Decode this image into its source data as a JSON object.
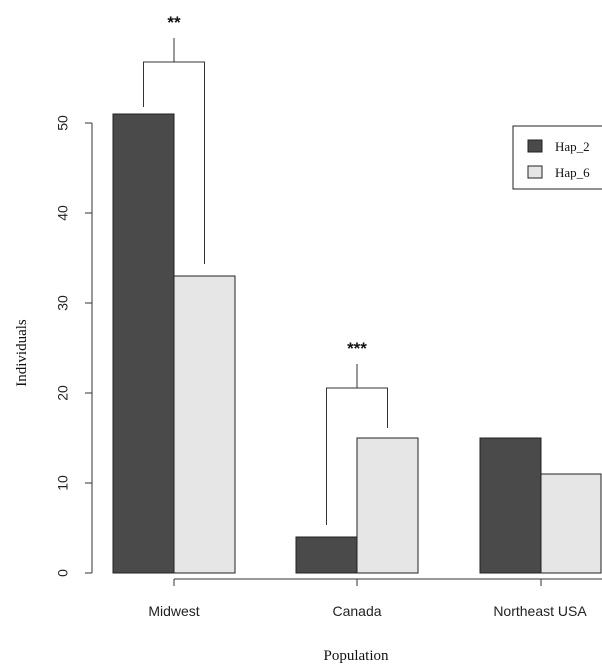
{
  "chart_data": {
    "type": "bar",
    "categories": [
      "Midwest",
      "Canada",
      "Northeast USA"
    ],
    "series": [
      {
        "name": "Hap_2",
        "values": [
          51,
          4,
          15
        ],
        "color": "#4a4a4a"
      },
      {
        "name": "Hap_6",
        "values": [
          33,
          15,
          11
        ],
        "color": "#e6e6e6"
      }
    ],
    "xlabel": "Population",
    "ylabel": "Individuals",
    "ylim": [
      0,
      50
    ],
    "yticks": [
      0,
      10,
      20,
      30,
      40,
      50
    ],
    "legend": {
      "placement": "top-right",
      "entries": [
        "Hap_2",
        "Hap_6"
      ]
    },
    "grid": false,
    "annotations": [
      {
        "text": "**",
        "category": "Midwest"
      },
      {
        "text": "***",
        "category": "Canada"
      }
    ]
  }
}
